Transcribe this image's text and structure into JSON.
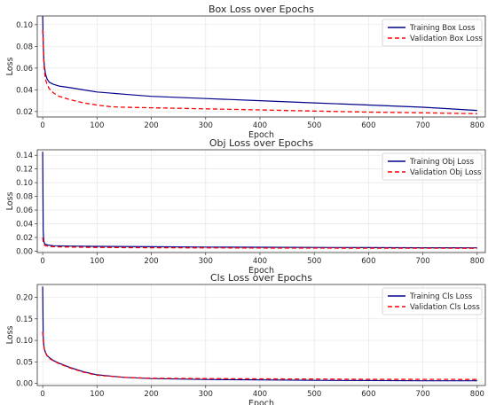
{
  "chart_data": [
    {
      "type": "line",
      "title": "Box Loss over Epochs",
      "xlabel": "Epoch",
      "ylabel": "Loss",
      "xlim": [
        -10,
        815
      ],
      "ylim": [
        0.015,
        0.108
      ],
      "xticks": [
        0,
        100,
        200,
        300,
        400,
        500,
        600,
        700,
        800
      ],
      "yticks": [
        0.02,
        0.04,
        0.06,
        0.08,
        0.1
      ],
      "ytick_labels": [
        "0.02",
        "0.04",
        "0.06",
        "0.08",
        "0.10"
      ],
      "grid": true,
      "legend_position": "top-right",
      "series": [
        {
          "name": "Training Box Loss",
          "color": "#00008b",
          "dash": "solid",
          "x": [
            0,
            1,
            2,
            3,
            5,
            8,
            12,
            20,
            30,
            50,
            75,
            100,
            150,
            200,
            300,
            400,
            500,
            600,
            700,
            800
          ],
          "y": [
            0.108,
            0.085,
            0.07,
            0.062,
            0.055,
            0.05,
            0.047,
            0.045,
            0.0435,
            0.042,
            0.04,
            0.038,
            0.036,
            0.034,
            0.032,
            0.03,
            0.028,
            0.026,
            0.024,
            0.021
          ]
        },
        {
          "name": "Validation Box Loss",
          "color": "#ff0000",
          "dash": "dashed",
          "x": [
            0,
            1,
            2,
            3,
            5,
            8,
            12,
            20,
            30,
            50,
            75,
            100,
            125,
            150,
            200,
            300,
            400,
            500,
            600,
            700,
            800
          ],
          "y": [
            0.095,
            0.082,
            0.068,
            0.058,
            0.05,
            0.045,
            0.041,
            0.037,
            0.034,
            0.031,
            0.028,
            0.026,
            0.0245,
            0.024,
            0.0235,
            0.0225,
            0.0215,
            0.0205,
            0.0195,
            0.0188,
            0.018
          ]
        }
      ]
    },
    {
      "type": "line",
      "title": "Obj Loss over Epochs",
      "xlabel": "Epoch",
      "ylabel": "Loss",
      "xlim": [
        -10,
        815
      ],
      "ylim": [
        -0.002,
        0.148
      ],
      "xticks": [
        0,
        100,
        200,
        300,
        400,
        500,
        600,
        700,
        800
      ],
      "yticks": [
        0.0,
        0.02,
        0.04,
        0.06,
        0.08,
        0.1,
        0.12,
        0.14
      ],
      "ytick_labels": [
        "0.00",
        "0.02",
        "0.04",
        "0.06",
        "0.08",
        "0.10",
        "0.12",
        "0.14"
      ],
      "grid": true,
      "legend_position": "top-right",
      "series": [
        {
          "name": "Training Obj Loss",
          "color": "#00008b",
          "dash": "solid",
          "x": [
            0,
            1,
            2,
            3,
            5,
            10,
            20,
            50,
            100,
            200,
            300,
            400,
            500,
            600,
            700,
            800
          ],
          "y": [
            0.145,
            0.03,
            0.016,
            0.012,
            0.01,
            0.009,
            0.008,
            0.0075,
            0.007,
            0.0065,
            0.006,
            0.0058,
            0.0055,
            0.0052,
            0.005,
            0.0048
          ]
        },
        {
          "name": "Validation Obj Loss",
          "color": "#ff0000",
          "dash": "dashed",
          "x": [
            0,
            1,
            2,
            3,
            5,
            10,
            20,
            50,
            100,
            200,
            300,
            400,
            500,
            600,
            700,
            800
          ],
          "y": [
            0.02,
            0.014,
            0.011,
            0.009,
            0.008,
            0.0072,
            0.0065,
            0.006,
            0.0055,
            0.005,
            0.0048,
            0.0046,
            0.0045,
            0.0044,
            0.0043,
            0.0042
          ]
        }
      ]
    },
    {
      "type": "line",
      "title": "Cls Loss over Epochs",
      "xlabel": "Epoch",
      "ylabel": "Loss",
      "xlim": [
        -10,
        815
      ],
      "ylim": [
        -0.005,
        0.23
      ],
      "xticks": [
        0,
        100,
        200,
        300,
        400,
        500,
        600,
        700,
        800
      ],
      "yticks": [
        0.0,
        0.05,
        0.1,
        0.15,
        0.2
      ],
      "ytick_labels": [
        "0.00",
        "0.05",
        "0.10",
        "0.15",
        "0.20"
      ],
      "grid": true,
      "legend_position": "top-right",
      "series": [
        {
          "name": "Training Cls Loss",
          "color": "#00008b",
          "dash": "solid",
          "x": [
            0,
            1,
            2,
            3,
            5,
            8,
            12,
            20,
            30,
            50,
            75,
            100,
            150,
            200,
            300,
            400,
            500,
            600,
            700,
            800
          ],
          "y": [
            0.225,
            0.11,
            0.09,
            0.08,
            0.072,
            0.065,
            0.06,
            0.053,
            0.047,
            0.037,
            0.027,
            0.02,
            0.014,
            0.011,
            0.009,
            0.008,
            0.007,
            0.0065,
            0.006,
            0.006
          ]
        },
        {
          "name": "Validation Cls Loss",
          "color": "#ff0000",
          "dash": "dashed",
          "x": [
            0,
            1,
            2,
            3,
            5,
            8,
            12,
            20,
            30,
            50,
            75,
            100,
            150,
            200,
            300,
            400,
            500,
            600,
            700,
            800
          ],
          "y": [
            0.12,
            0.1,
            0.088,
            0.079,
            0.071,
            0.064,
            0.058,
            0.052,
            0.046,
            0.036,
            0.026,
            0.019,
            0.014,
            0.012,
            0.011,
            0.0105,
            0.01,
            0.0095,
            0.0092,
            0.009
          ]
        }
      ]
    }
  ]
}
